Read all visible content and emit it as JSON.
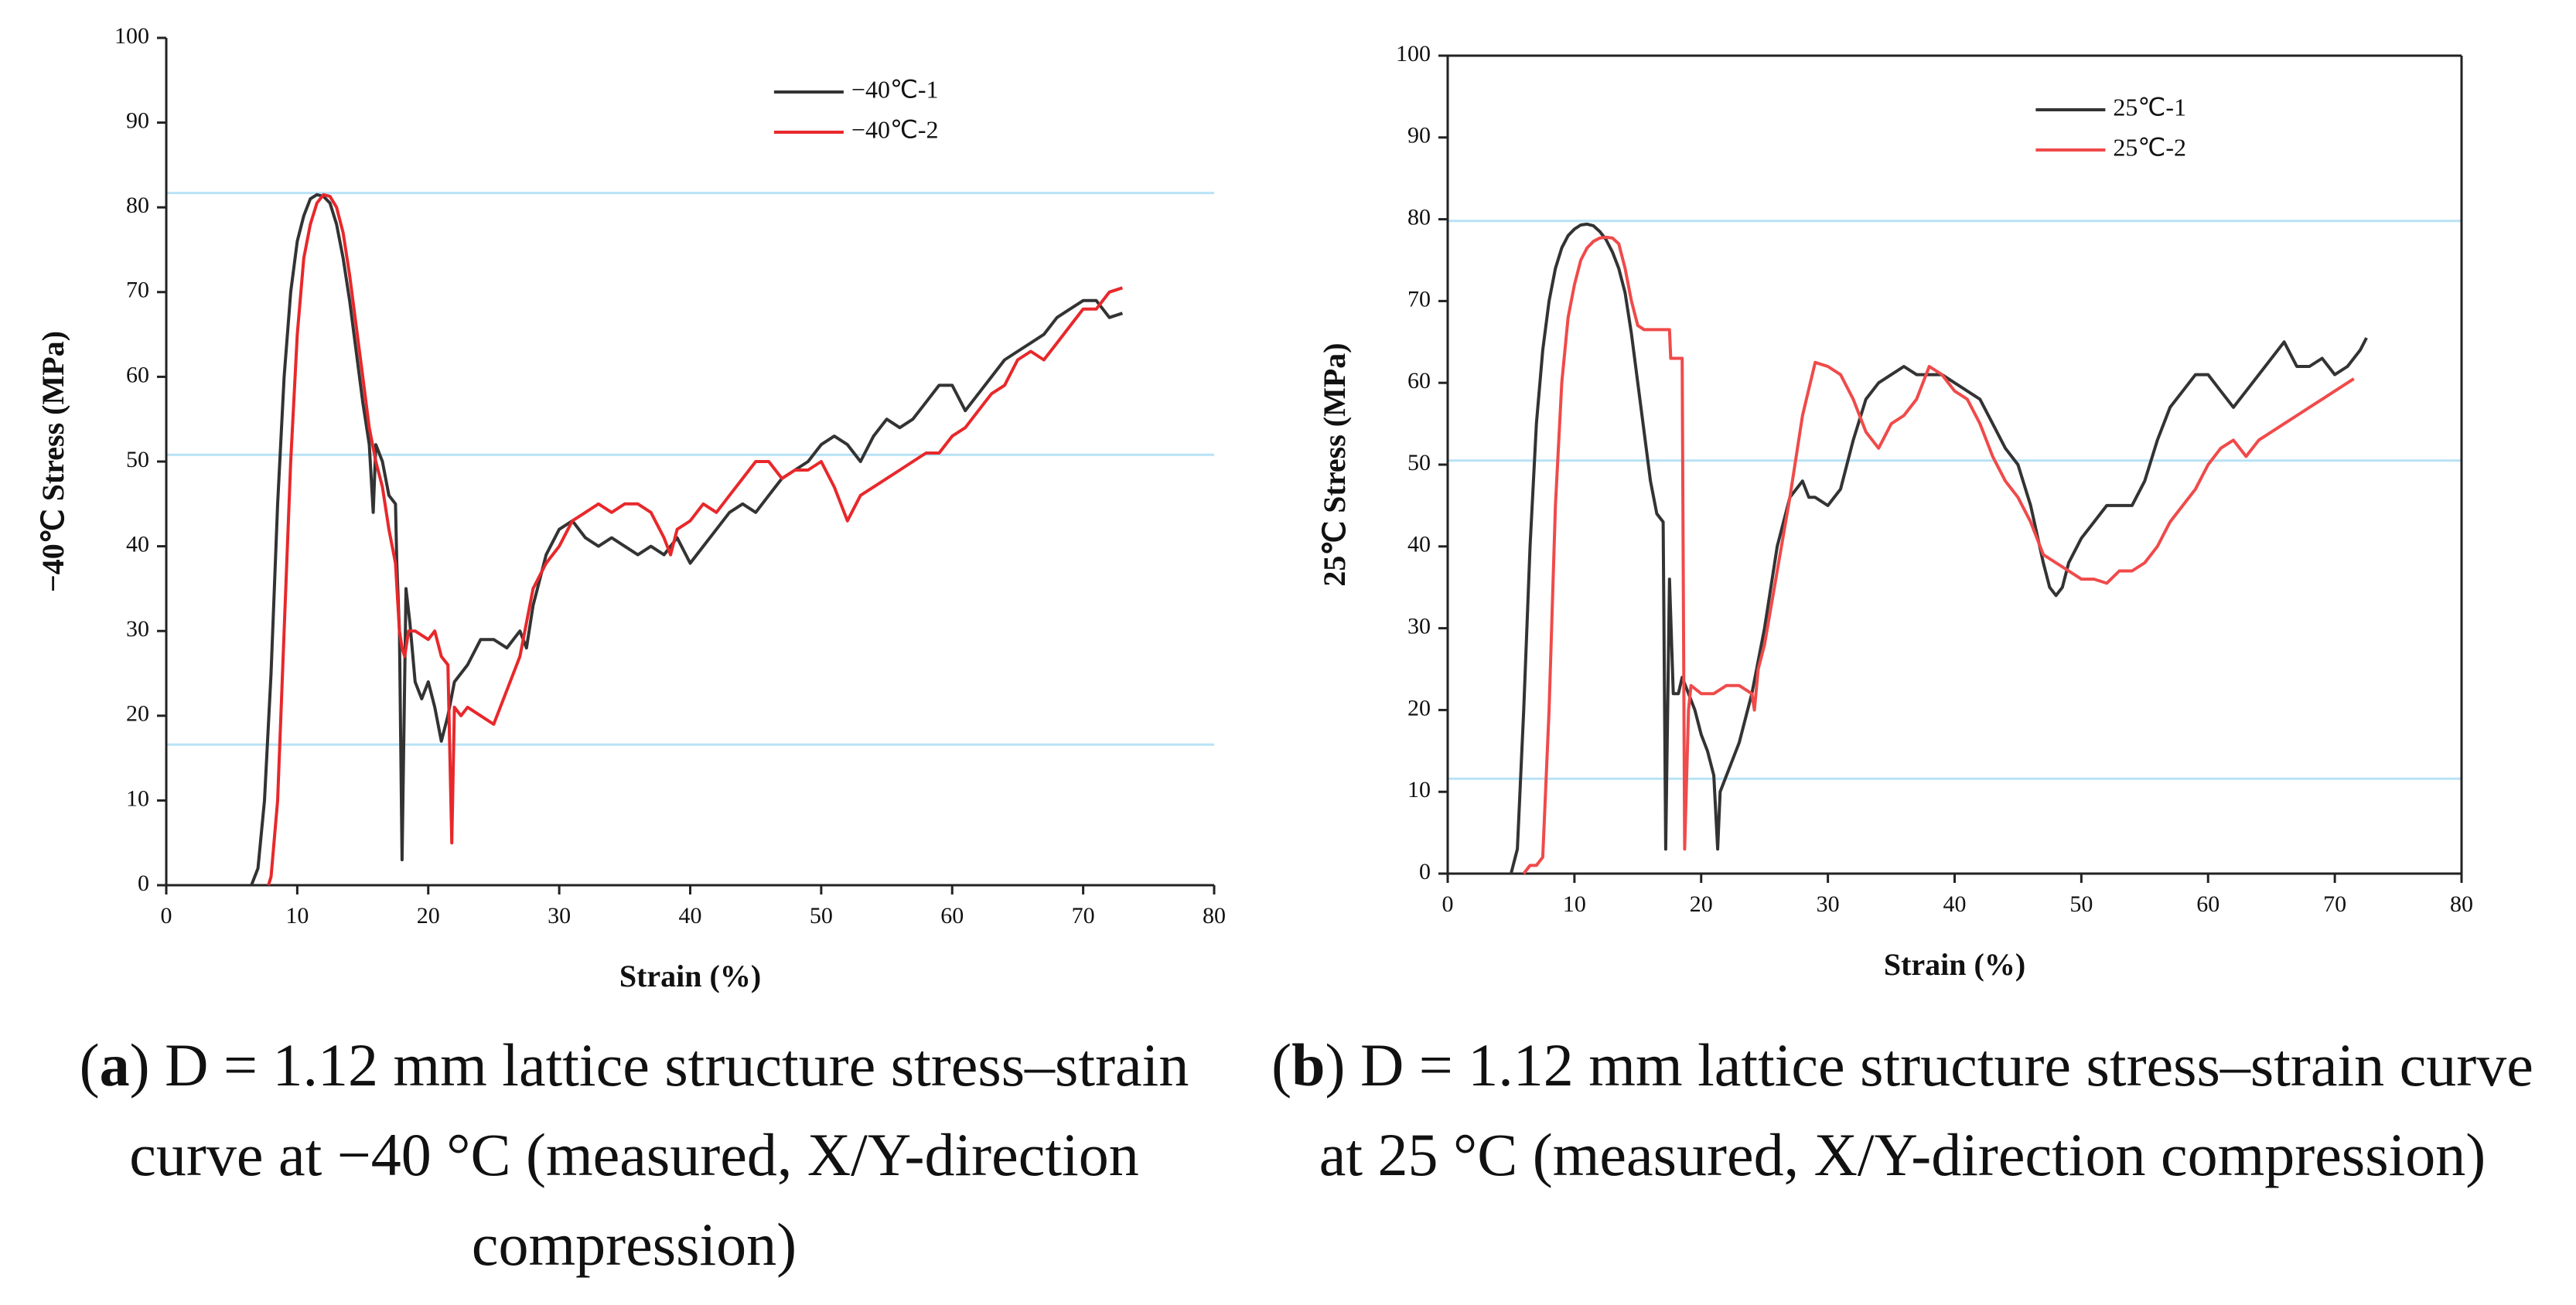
{
  "chart_data": [
    {
      "type": "line",
      "xlabel": "Strain (%)",
      "ylabel": "−40℃ Stress (MPa)",
      "xlim": [
        0,
        80
      ],
      "ylim": [
        0,
        100
      ],
      "xticks": [
        0,
        10,
        20,
        30,
        40,
        50,
        60,
        70,
        80
      ],
      "yticks": [
        0,
        10,
        20,
        30,
        40,
        50,
        60,
        70,
        80,
        90,
        100
      ],
      "reference_lines": [
        81.7,
        50.8,
        16.6
      ],
      "reference_color": "#b8e2f5",
      "frame": false,
      "legend": "top-right",
      "caption": [
        "(",
        "a",
        ")",
        " D = 1.12 mm lattice structure stress–strain curve at −40 °C (measured, X/Y-direction compression)"
      ],
      "series": [
        {
          "name": "−40℃-1",
          "color": "#333333",
          "x": [
            6.5,
            7,
            7.5,
            8,
            8.5,
            9,
            9.5,
            10,
            10.5,
            11,
            11.5,
            12,
            12.5,
            13,
            13.5,
            14,
            14.5,
            15,
            15.5,
            15.8,
            16,
            16.5,
            17,
            17.5,
            17.6,
            17.8,
            18,
            18.3,
            18.6,
            19,
            19.5,
            20,
            20.5,
            21,
            21.5,
            22,
            23,
            24,
            25,
            26,
            27,
            27.5,
            28,
            29,
            30,
            31,
            32,
            33,
            34,
            35,
            36,
            37,
            38,
            39,
            40,
            41,
            42,
            43,
            44,
            45,
            46,
            47,
            48,
            49,
            50,
            51,
            52,
            53,
            54,
            55,
            56,
            57,
            58,
            59,
            60,
            61,
            62,
            63,
            64,
            65,
            66,
            67,
            68,
            69,
            70,
            71,
            72,
            73
          ],
          "values": [
            0,
            2,
            10,
            25,
            45,
            60,
            70,
            76,
            79,
            81,
            81.5,
            81.3,
            80.5,
            78,
            74,
            69,
            63,
            57,
            52,
            44,
            52,
            50,
            46,
            45,
            38,
            30,
            3,
            35,
            31,
            24,
            22,
            24,
            21,
            17,
            20,
            24,
            26,
            29,
            29,
            28,
            30,
            28,
            33,
            39,
            42,
            43,
            41,
            40,
            41,
            40,
            39,
            40,
            39,
            41,
            38,
            40,
            42,
            44,
            45,
            44,
            46,
            48,
            49,
            50,
            52,
            53,
            52,
            50,
            53,
            55,
            54,
            55,
            57,
            59,
            59,
            56,
            58,
            60,
            62,
            63,
            64,
            65,
            67,
            68,
            69,
            69,
            67,
            67.5
          ]
        },
        {
          "name": "−40℃-2",
          "color": "#e8282b",
          "x": [
            7.8,
            8,
            8.5,
            9,
            9.5,
            10,
            10.5,
            11,
            11.5,
            12,
            12.5,
            13,
            13.5,
            14,
            14.5,
            15,
            15.5,
            16,
            16.5,
            17,
            17.5,
            17.8,
            18,
            18.2,
            18.5,
            19,
            20,
            20.5,
            21,
            21.5,
            21.8,
            22,
            22.5,
            23,
            24,
            25,
            26,
            27,
            28,
            29,
            30,
            31,
            32,
            33,
            34,
            35,
            36,
            37,
            38,
            38.5,
            39,
            40,
            41,
            42,
            43,
            44,
            45,
            46,
            47,
            48,
            49,
            50,
            51,
            52,
            53,
            54,
            55,
            56,
            57,
            58,
            59,
            60,
            61,
            62,
            63,
            64,
            65,
            66,
            67,
            68,
            69,
            70,
            71,
            72,
            73
          ],
          "values": [
            0,
            1,
            10,
            30,
            50,
            65,
            74,
            78,
            80.5,
            81.5,
            81.3,
            80,
            77,
            72,
            66,
            60,
            54,
            50,
            47,
            42,
            38,
            30,
            28,
            27,
            30,
            30,
            29,
            30,
            27,
            26,
            5,
            21,
            20,
            21,
            20,
            19,
            23,
            27,
            35,
            38,
            40,
            43,
            44,
            45,
            44,
            45,
            45,
            44,
            41,
            39,
            42,
            43,
            45,
            44,
            46,
            48,
            50,
            50,
            48,
            49,
            49,
            50,
            47,
            43,
            46,
            47,
            48,
            49,
            50,
            51,
            51,
            53,
            54,
            56,
            58,
            59,
            62,
            63,
            62,
            64,
            66,
            68,
            68,
            70,
            70.5
          ]
        }
      ]
    },
    {
      "type": "line",
      "xlabel": "Strain (%)",
      "ylabel": "25℃ Stress (MPa)",
      "xlim": [
        0,
        80
      ],
      "ylim": [
        0,
        100
      ],
      "xticks": [
        0,
        10,
        20,
        30,
        40,
        50,
        60,
        70,
        80
      ],
      "yticks": [
        0,
        10,
        20,
        30,
        40,
        50,
        60,
        70,
        80,
        90,
        100
      ],
      "reference_lines": [
        79.8,
        50.5,
        11.6
      ],
      "reference_color": "#b8e2f5",
      "frame": true,
      "legend": "top-right",
      "caption": [
        "(",
        "b",
        ")",
        " D = 1.12 mm lattice structure stress–strain curve at 25 °C (measured, X/Y-direction compression)"
      ],
      "series": [
        {
          "name": "25℃-1",
          "color": "#333333",
          "x": [
            5,
            5.5,
            6,
            6.5,
            7,
            7.5,
            8,
            8.5,
            9,
            9.5,
            10,
            10.5,
            11,
            11.5,
            12,
            12.5,
            13,
            13.5,
            14,
            14.5,
            15,
            15.5,
            16,
            16.5,
            17,
            17.2,
            17.5,
            17.8,
            18.2,
            18.5,
            19,
            19.5,
            20,
            20.5,
            21,
            21.3,
            21.5,
            22,
            23,
            24,
            25,
            26,
            27,
            28,
            28.5,
            29,
            30,
            31,
            32,
            33,
            34,
            35,
            36,
            37,
            38,
            39,
            40,
            41,
            42,
            43,
            44,
            45,
            46,
            47,
            47.5,
            48,
            48.5,
            49,
            50,
            51,
            52,
            53,
            54,
            55,
            56,
            57,
            58,
            59,
            60,
            61,
            62,
            63,
            64,
            65,
            66,
            67,
            68,
            69,
            70,
            71,
            72,
            72.5
          ],
          "values": [
            0,
            3,
            20,
            40,
            55,
            64,
            70,
            74,
            76.5,
            78,
            78.8,
            79.3,
            79.4,
            79.2,
            78.5,
            77.5,
            76,
            74,
            71,
            66,
            60,
            54,
            48,
            44,
            43,
            3,
            36,
            22,
            22,
            24,
            22,
            20,
            17,
            15,
            12,
            3,
            10,
            12,
            16,
            22,
            30,
            40,
            46,
            48,
            46,
            46,
            45,
            47,
            53,
            58,
            60,
            61,
            62,
            61,
            61,
            61,
            60,
            59,
            58,
            55,
            52,
            50,
            45,
            38,
            35,
            34,
            35,
            38,
            41,
            43,
            45,
            45,
            45,
            48,
            53,
            57,
            59,
            61,
            61,
            59,
            57,
            59,
            61,
            63,
            65,
            62,
            62,
            63,
            61,
            62,
            64,
            65.5
          ]
        },
        {
          "name": "25℃-2",
          "color": "#f04a4a",
          "x": [
            6,
            6.5,
            7,
            7.5,
            8,
            8.5,
            9,
            9.5,
            10,
            10.5,
            11,
            11.5,
            12,
            12.5,
            13,
            13.5,
            14,
            14.5,
            15,
            15.5,
            16,
            17,
            17.5,
            17.6,
            18.5,
            18.7,
            19,
            19.2,
            20,
            21,
            22,
            23,
            24,
            24.2,
            24.5,
            25,
            26,
            27,
            28,
            29,
            30,
            31,
            32,
            33,
            34,
            35,
            36,
            37,
            38,
            39,
            40,
            41,
            42,
            43,
            44,
            45,
            46,
            47,
            48,
            49,
            50,
            51,
            52,
            53,
            54,
            55,
            56,
            57,
            58,
            59,
            60,
            61,
            62,
            63,
            64,
            65,
            66,
            67,
            68,
            69,
            70,
            71,
            71.5
          ],
          "values": [
            0,
            1,
            1,
            2,
            20,
            45,
            60,
            68,
            72,
            75,
            76.5,
            77.3,
            77.7,
            77.8,
            77.7,
            77,
            74,
            70,
            67,
            66.5,
            66.5,
            66.5,
            66.5,
            63,
            63,
            3,
            20,
            23,
            22,
            22,
            23,
            23,
            22,
            20,
            25,
            28,
            37,
            46,
            56,
            62.5,
            62,
            61,
            58,
            54,
            52,
            55,
            56,
            58,
            62,
            61,
            59,
            58,
            55,
            51,
            48,
            46,
            43,
            39,
            38,
            37,
            36,
            36,
            35.5,
            37,
            37,
            38,
            40,
            43,
            45,
            47,
            50,
            52,
            53,
            51,
            53,
            54,
            55,
            56,
            57,
            58,
            59,
            60,
            60.5
          ]
        }
      ]
    }
  ]
}
